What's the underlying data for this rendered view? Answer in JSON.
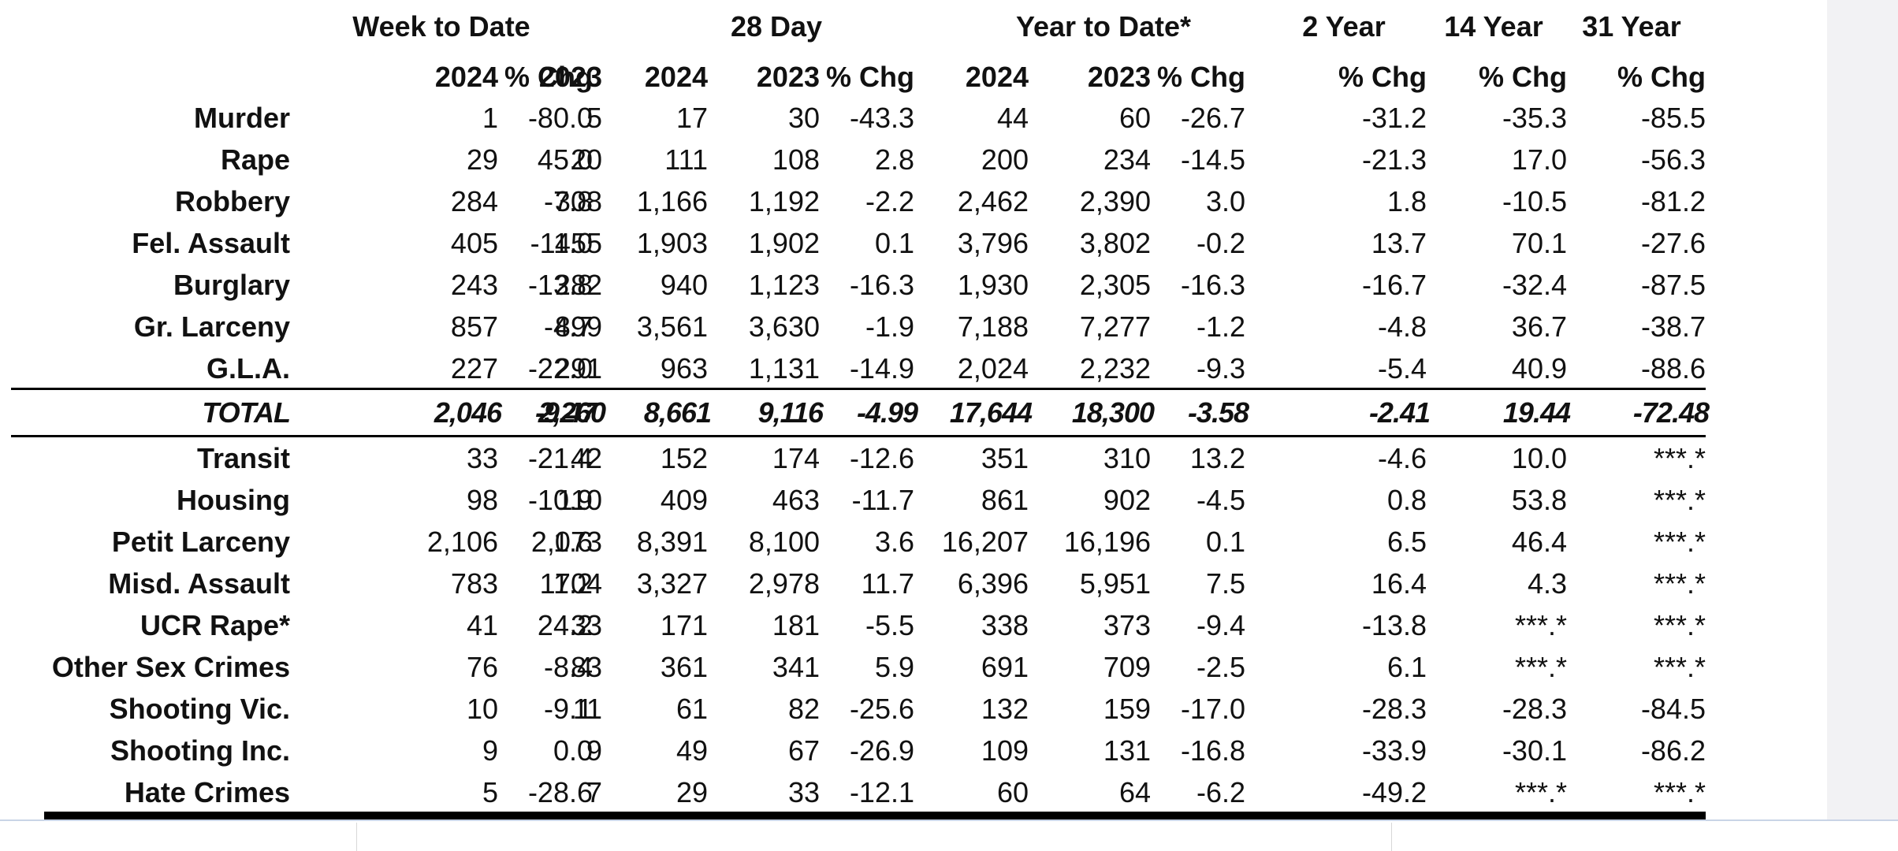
{
  "table": {
    "groups": [
      "Week to Date",
      "28 Day",
      "Year to Date*",
      "2 Year",
      "14 Year",
      "31 Year"
    ],
    "subheaders": [
      "2024",
      "2023",
      "% Chg",
      "2024",
      "2023",
      "% Chg",
      "2024",
      "2023",
      "% Chg",
      "% Chg",
      "% Chg",
      "% Chg"
    ],
    "rows": [
      {
        "label": "Murder",
        "cells": [
          "1",
          "5",
          "-80.0",
          "17",
          "30",
          "-43.3",
          "44",
          "60",
          "-26.7",
          "-31.2",
          "-35.3",
          "-85.5"
        ]
      },
      {
        "label": "Rape",
        "cells": [
          "29",
          "20",
          "45.0",
          "111",
          "108",
          "2.8",
          "200",
          "234",
          "-14.5",
          "-21.3",
          "17.0",
          "-56.3"
        ]
      },
      {
        "label": "Robbery",
        "cells": [
          "284",
          "308",
          "-7.8",
          "1,166",
          "1,192",
          "-2.2",
          "2,462",
          "2,390",
          "3.0",
          "1.8",
          "-10.5",
          "-81.2"
        ]
      },
      {
        "label": "Fel. Assault",
        "cells": [
          "405",
          "455",
          "-11.0",
          "1,903",
          "1,902",
          "0.1",
          "3,796",
          "3,802",
          "-0.2",
          "13.7",
          "70.1",
          "-27.6"
        ]
      },
      {
        "label": "Burglary",
        "cells": [
          "243",
          "282",
          "-13.8",
          "940",
          "1,123",
          "-16.3",
          "1,930",
          "2,305",
          "-16.3",
          "-16.7",
          "-32.4",
          "-87.5"
        ]
      },
      {
        "label": "Gr. Larceny",
        "cells": [
          "857",
          "899",
          "-4.7",
          "3,561",
          "3,630",
          "-1.9",
          "7,188",
          "7,277",
          "-1.2",
          "-4.8",
          "36.7",
          "-38.7"
        ]
      },
      {
        "label": "G.L.A.",
        "cells": [
          "227",
          "291",
          "-22.0",
          "963",
          "1,131",
          "-14.9",
          "2,024",
          "2,232",
          "-9.3",
          "-5.4",
          "40.9",
          "-88.6"
        ]
      }
    ],
    "total": {
      "label": "TOTAL",
      "cells": [
        "2,046",
        "2,260",
        "-9.47",
        "8,661",
        "9,116",
        "-4.99",
        "17,644",
        "18,300",
        "-3.58",
        "-2.41",
        "19.44",
        "-72.48"
      ]
    },
    "other_rows": [
      {
        "label": "Transit",
        "cells": [
          "33",
          "42",
          "-21.4",
          "152",
          "174",
          "-12.6",
          "351",
          "310",
          "13.2",
          "-4.6",
          "10.0",
          "***.*"
        ]
      },
      {
        "label": "Housing",
        "cells": [
          "98",
          "110",
          "-10.9",
          "409",
          "463",
          "-11.7",
          "861",
          "902",
          "-4.5",
          "0.8",
          "53.8",
          "***.*"
        ]
      },
      {
        "label": "Petit Larceny",
        "cells": [
          "2,106",
          "2,073",
          "1.6",
          "8,391",
          "8,100",
          "3.6",
          "16,207",
          "16,196",
          "0.1",
          "6.5",
          "46.4",
          "***.*"
        ]
      },
      {
        "label": "Misd. Assault",
        "cells": [
          "783",
          "704",
          "11.2",
          "3,327",
          "2,978",
          "11.7",
          "6,396",
          "5,951",
          "7.5",
          "16.4",
          "4.3",
          "***.*"
        ]
      },
      {
        "label": "UCR Rape*",
        "cells": [
          "41",
          "33",
          "24.2",
          "171",
          "181",
          "-5.5",
          "338",
          "373",
          "-9.4",
          "-13.8",
          "***.*",
          "***.*"
        ]
      },
      {
        "label": "Other Sex Crimes",
        "cells": [
          "76",
          "83",
          "-8.4",
          "361",
          "341",
          "5.9",
          "691",
          "709",
          "-2.5",
          "6.1",
          "***.*",
          "***.*"
        ]
      },
      {
        "label": "Shooting Vic.",
        "cells": [
          "10",
          "11",
          "-9.1",
          "61",
          "82",
          "-25.6",
          "132",
          "159",
          "-17.0",
          "-28.3",
          "-28.3",
          "-84.5"
        ]
      },
      {
        "label": "Shooting Inc.",
        "cells": [
          "9",
          "9",
          "0.0",
          "49",
          "67",
          "-26.9",
          "109",
          "131",
          "-16.8",
          "-33.9",
          "-30.1",
          "-86.2"
        ]
      },
      {
        "label": "Hate Crimes",
        "cells": [
          "5",
          "7",
          "-28.6",
          "29",
          "33",
          "-12.1",
          "60",
          "64",
          "-6.2",
          "-49.2",
          "***.*",
          "***.*"
        ]
      }
    ]
  }
}
